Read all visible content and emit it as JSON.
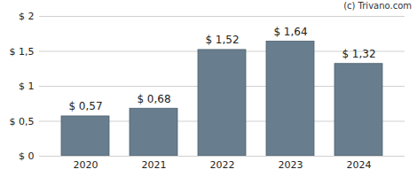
{
  "chart_data": {
    "type": "bar",
    "annotations": [
      "(c) Trivano.com"
    ],
    "categories": [
      "2020",
      "2021",
      "2022",
      "2023",
      "2024"
    ],
    "values": [
      0.57,
      0.68,
      1.52,
      1.64,
      1.32
    ],
    "value_labels": [
      "$ 0,57",
      "$ 0,68",
      "$ 1,52",
      "$ 1,64",
      "$ 1,32"
    ],
    "data_labels": true,
    "color": "#687d8d",
    "ylim": [
      0,
      2
    ],
    "yticks": [
      {
        "value": 0,
        "label": "$ 0"
      },
      {
        "value": 0.5,
        "label": "$ 0,5"
      },
      {
        "value": 1,
        "label": "$ 1"
      },
      {
        "value": 1.5,
        "label": "$ 1,5"
      },
      {
        "value": 2,
        "label": "$ 2"
      }
    ],
    "grid": true
  }
}
